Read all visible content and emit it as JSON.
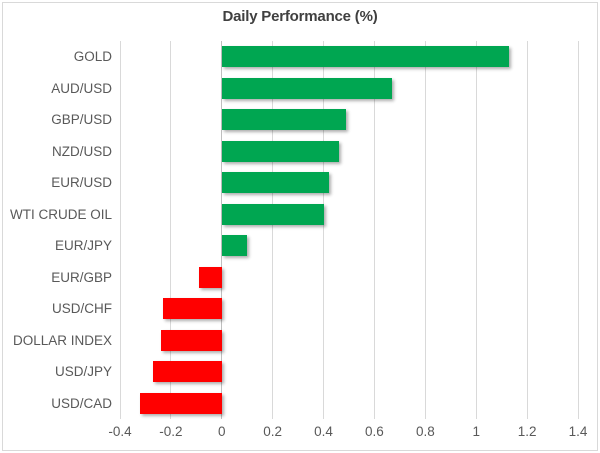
{
  "title": "Daily Performance (%)",
  "chart_data": {
    "type": "bar",
    "orientation": "horizontal",
    "title": "Daily Performance (%)",
    "categories": [
      "GOLD",
      "AUD/USD",
      "GBP/USD",
      "NZD/USD",
      "EUR/USD",
      "WTI CRUDE OIL",
      "EUR/JPY",
      "EUR/GBP",
      "USD/CHF",
      "DOLLAR INDEX",
      "USD/JPY",
      "USD/CAD"
    ],
    "values": [
      1.13,
      0.67,
      0.49,
      0.46,
      0.42,
      0.4,
      0.1,
      -0.09,
      -0.23,
      -0.24,
      -0.27,
      -0.32
    ],
    "xlabel": "",
    "ylabel": "",
    "xlim": [
      -0.4,
      1.4
    ],
    "x_ticks": [
      -0.4,
      -0.2,
      0,
      0.2,
      0.4,
      0.6,
      0.8,
      1,
      1.2,
      1.4
    ],
    "x_tick_labels": [
      "-0.4",
      "-0.2",
      "0",
      "0.2",
      "0.4",
      "0.6",
      "0.8",
      "1",
      "1.2",
      "1.4"
    ],
    "grid": "vertical",
    "legend_position": "none",
    "colors": {
      "positive": "#00A651",
      "negative": "#FF0000",
      "gridline": "#D9D9D9",
      "zero_line": "#BFBFBF",
      "title_text": "#404040",
      "label_text": "#595959",
      "border": "#D9D9D9",
      "background": "#FFFFFF"
    }
  }
}
